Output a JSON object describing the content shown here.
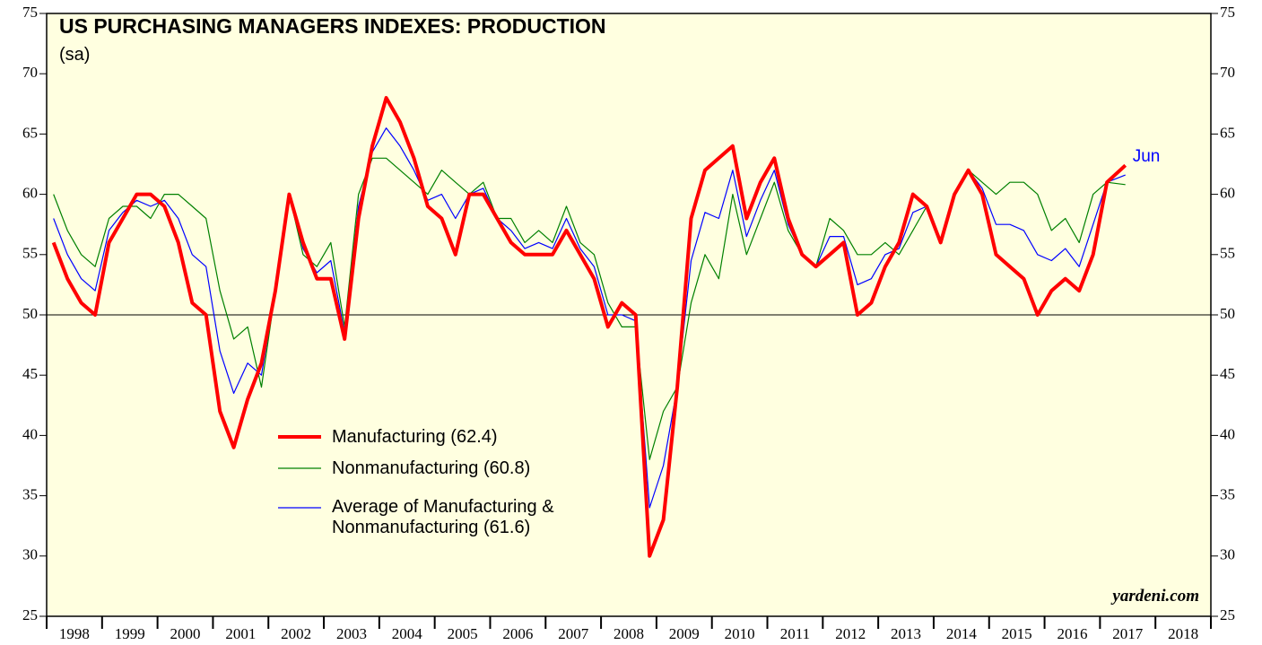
{
  "chart_data": {
    "type": "line",
    "title": "US PURCHASING MANAGERS INDEXES: PRODUCTION",
    "subtitle": "(sa)",
    "annotation": "Jun",
    "source": "yardeni.com",
    "reference_line": 50,
    "year_labels": [
      "1998",
      "1999",
      "2000",
      "2001",
      "2002",
      "2003",
      "2004",
      "2005",
      "2006",
      "2007",
      "2008",
      "2009",
      "2010",
      "2011",
      "2012",
      "2013",
      "2014",
      "2015",
      "2016",
      "2017",
      "2018"
    ],
    "xlim": [
      1998,
      2019
    ],
    "xticks": [
      1998,
      1999,
      2000,
      2001,
      2002,
      2003,
      2004,
      2005,
      2006,
      2007,
      2008,
      2009,
      2010,
      2011,
      2012,
      2013,
      2014,
      2015,
      2016,
      2017,
      2018,
      2019
    ],
    "ylim": [
      25,
      75
    ],
    "yticks": [
      25,
      30,
      35,
      40,
      45,
      50,
      55,
      60,
      65,
      70,
      75
    ],
    "x": [
      1998.125,
      1998.375,
      1998.625,
      1998.875,
      1999.125,
      1999.375,
      1999.625,
      1999.875,
      2000.125,
      2000.375,
      2000.625,
      2000.875,
      2001.125,
      2001.375,
      2001.625,
      2001.875,
      2002.125,
      2002.375,
      2002.625,
      2002.875,
      2003.125,
      2003.375,
      2003.625,
      2003.875,
      2004.125,
      2004.375,
      2004.625,
      2004.875,
      2005.125,
      2005.375,
      2005.625,
      2005.875,
      2006.125,
      2006.375,
      2006.625,
      2006.875,
      2007.125,
      2007.375,
      2007.625,
      2007.875,
      2008.125,
      2008.375,
      2008.625,
      2008.875,
      2009.125,
      2009.375,
      2009.625,
      2009.875,
      2010.125,
      2010.375,
      2010.625,
      2010.875,
      2011.125,
      2011.375,
      2011.625,
      2011.875,
      2012.125,
      2012.375,
      2012.625,
      2012.875,
      2013.125,
      2013.375,
      2013.625,
      2013.875,
      2014.125,
      2014.375,
      2014.625,
      2014.875,
      2015.125,
      2015.375,
      2015.625,
      2015.875,
      2016.125,
      2016.375,
      2016.625,
      2016.875,
      2017.125,
      2017.458
    ],
    "series": [
      {
        "name": "Manufacturing (62.4)",
        "color": "#ff0000",
        "width": 4,
        "values": [
          56,
          53,
          51,
          50,
          56,
          58,
          60,
          60,
          59,
          56,
          51,
          50,
          42,
          39,
          43,
          46,
          52,
          60,
          56,
          53,
          53,
          48,
          58,
          64,
          68,
          66,
          63,
          59,
          58,
          55,
          60,
          60,
          58,
          56,
          55,
          55,
          55,
          57,
          55,
          53,
          49,
          51,
          50,
          30,
          33,
          44,
          58,
          62,
          63,
          64,
          58,
          61,
          63,
          58,
          55,
          54,
          55,
          56,
          50,
          51,
          54,
          56,
          60,
          59,
          56,
          60,
          62,
          60,
          55,
          54,
          53,
          50,
          52,
          53,
          52,
          55,
          61,
          62.4
        ]
      },
      {
        "name": "Nonmanufacturing (60.8)",
        "color": "#008000",
        "width": 1.2,
        "values": [
          60,
          57,
          55,
          54,
          58,
          59,
          59,
          58,
          60,
          60,
          59,
          58,
          52,
          48,
          49,
          44,
          52,
          60,
          55,
          54,
          56,
          49,
          60,
          63,
          63,
          62,
          61,
          60,
          62,
          61,
          60,
          61,
          58,
          58,
          56,
          57,
          56,
          59,
          56,
          55,
          51,
          49,
          49,
          38,
          42,
          44,
          51,
          55,
          53,
          60,
          55,
          58,
          61,
          57,
          55,
          54,
          58,
          57,
          55,
          55,
          56,
          55,
          57,
          59,
          56,
          60,
          62,
          61,
          60,
          61,
          61,
          60,
          57,
          58,
          56,
          60,
          61,
          60.8
        ]
      },
      {
        "name": "Average of Manufacturing & Nonmanufacturing (61.6)",
        "color": "#0000ff",
        "width": 1.2,
        "values": [
          58,
          55,
          53,
          52,
          57,
          58.5,
          59.5,
          59,
          59.5,
          58,
          55,
          54,
          47,
          43.5,
          46,
          45,
          52,
          60,
          55.5,
          53.5,
          54.5,
          48.5,
          59,
          63.5,
          65.5,
          64,
          62,
          59.5,
          60,
          58,
          60,
          60.5,
          58,
          57,
          55.5,
          56,
          55.5,
          58,
          55.5,
          54,
          50,
          50,
          49.5,
          34,
          37.5,
          44,
          54.5,
          58.5,
          58,
          62,
          56.5,
          59.5,
          62,
          57.5,
          55,
          54,
          56.5,
          56.5,
          52.5,
          53,
          55,
          55.5,
          58.5,
          59,
          56,
          60,
          62,
          60.5,
          57.5,
          57.5,
          57,
          55,
          54.5,
          55.5,
          54,
          57.5,
          61,
          61.6
        ]
      }
    ]
  }
}
